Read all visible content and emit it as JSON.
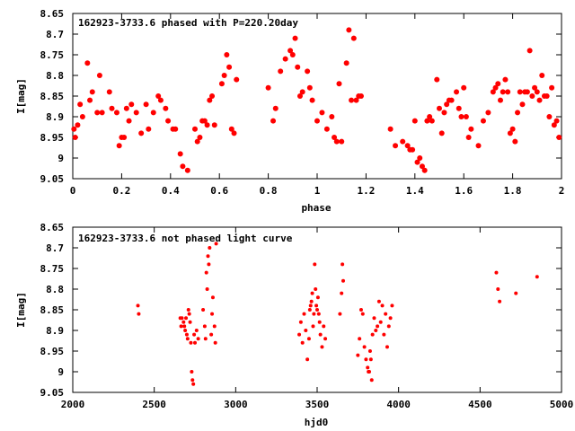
{
  "chart_data": [
    {
      "type": "scatter",
      "title": "162923-3733.6 phased with P=220.20day",
      "xlabel": "phase",
      "ylabel": "I[mag]",
      "xlim": [
        0,
        2
      ],
      "ylim": [
        8.65,
        9.05
      ],
      "y_inverted": true,
      "grid": false,
      "marker_color": "#ff0000",
      "x_ticks": [
        "0",
        "0.2",
        "0.4",
        "0.6",
        "0.8",
        "1",
        "1.2",
        "1.4",
        "1.6",
        "1.8",
        "2"
      ],
      "y_ticks": [
        "8.65",
        "8.7",
        "8.75",
        "8.8",
        "8.85",
        "8.9",
        "8.95",
        "9",
        "9.05"
      ],
      "x_tick_values": [
        0,
        0.2,
        0.4,
        0.6,
        0.8,
        1.0,
        1.2,
        1.4,
        1.6,
        1.8,
        2.0
      ],
      "y_tick_values": [
        8.65,
        8.7,
        8.75,
        8.8,
        8.85,
        8.9,
        8.95,
        9.0,
        9.05
      ],
      "points": [
        [
          0.005,
          8.93
        ],
        [
          0.01,
          8.95
        ],
        [
          0.02,
          8.92
        ],
        [
          0.03,
          8.87
        ],
        [
          0.04,
          8.9
        ],
        [
          0.06,
          8.77
        ],
        [
          0.07,
          8.86
        ],
        [
          0.08,
          8.84
        ],
        [
          0.1,
          8.89
        ],
        [
          0.11,
          8.8
        ],
        [
          0.12,
          8.89
        ],
        [
          0.15,
          8.84
        ],
        [
          0.16,
          8.88
        ],
        [
          0.18,
          8.89
        ],
        [
          0.19,
          8.97
        ],
        [
          0.2,
          8.95
        ],
        [
          0.21,
          8.95
        ],
        [
          0.22,
          8.88
        ],
        [
          0.23,
          8.91
        ],
        [
          0.24,
          8.87
        ],
        [
          0.26,
          8.89
        ],
        [
          0.28,
          8.94
        ],
        [
          0.3,
          8.87
        ],
        [
          0.31,
          8.93
        ],
        [
          0.33,
          8.89
        ],
        [
          0.35,
          8.85
        ],
        [
          0.36,
          8.86
        ],
        [
          0.38,
          8.88
        ],
        [
          0.39,
          8.91
        ],
        [
          0.41,
          8.93
        ],
        [
          0.42,
          8.93
        ],
        [
          0.44,
          8.99
        ],
        [
          0.45,
          9.02
        ],
        [
          0.47,
          9.03
        ],
        [
          0.5,
          8.93
        ],
        [
          0.51,
          8.96
        ],
        [
          0.52,
          8.95
        ],
        [
          0.53,
          8.91
        ],
        [
          0.54,
          8.91
        ],
        [
          0.55,
          8.92
        ],
        [
          0.56,
          8.86
        ],
        [
          0.57,
          8.85
        ],
        [
          0.58,
          8.92
        ],
        [
          0.61,
          8.82
        ],
        [
          0.62,
          8.8
        ],
        [
          0.63,
          8.75
        ],
        [
          0.64,
          8.78
        ],
        [
          0.65,
          8.93
        ],
        [
          0.66,
          8.94
        ],
        [
          0.67,
          8.81
        ],
        [
          0.8,
          8.83
        ],
        [
          0.82,
          8.91
        ],
        [
          0.83,
          8.88
        ],
        [
          0.85,
          8.79
        ],
        [
          0.87,
          8.76
        ],
        [
          0.89,
          8.74
        ],
        [
          0.9,
          8.75
        ],
        [
          0.91,
          8.71
        ],
        [
          0.92,
          8.78
        ],
        [
          0.93,
          8.85
        ],
        [
          0.94,
          8.84
        ],
        [
          0.96,
          8.79
        ],
        [
          0.97,
          8.83
        ],
        [
          0.98,
          8.86
        ],
        [
          1.0,
          8.91
        ],
        [
          1.02,
          8.89
        ],
        [
          1.04,
          8.93
        ],
        [
          1.06,
          8.9
        ],
        [
          1.07,
          8.95
        ],
        [
          1.08,
          8.96
        ],
        [
          1.09,
          8.82
        ],
        [
          1.1,
          8.96
        ],
        [
          1.12,
          8.77
        ],
        [
          1.13,
          8.69
        ],
        [
          1.14,
          8.86
        ],
        [
          1.15,
          8.71
        ],
        [
          1.16,
          8.86
        ],
        [
          1.17,
          8.85
        ],
        [
          1.18,
          8.85
        ],
        [
          1.3,
          8.93
        ],
        [
          1.32,
          8.97
        ],
        [
          1.35,
          8.96
        ],
        [
          1.37,
          8.97
        ],
        [
          1.38,
          8.98
        ],
        [
          1.39,
          8.98
        ],
        [
          1.4,
          8.91
        ],
        [
          1.41,
          9.01
        ],
        [
          1.42,
          9.0
        ],
        [
          1.43,
          9.02
        ],
        [
          1.44,
          9.03
        ],
        [
          1.45,
          8.91
        ],
        [
          1.46,
          8.9
        ],
        [
          1.47,
          8.91
        ],
        [
          1.49,
          8.81
        ],
        [
          1.5,
          8.88
        ],
        [
          1.51,
          8.94
        ],
        [
          1.52,
          8.89
        ],
        [
          1.53,
          8.87
        ],
        [
          1.54,
          8.86
        ],
        [
          1.55,
          8.86
        ],
        [
          1.57,
          8.84
        ],
        [
          1.58,
          8.88
        ],
        [
          1.59,
          8.9
        ],
        [
          1.6,
          8.83
        ],
        [
          1.61,
          8.9
        ],
        [
          1.62,
          8.95
        ],
        [
          1.63,
          8.93
        ],
        [
          1.66,
          8.97
        ],
        [
          1.68,
          8.91
        ],
        [
          1.7,
          8.89
        ],
        [
          1.72,
          8.84
        ],
        [
          1.73,
          8.83
        ],
        [
          1.74,
          8.82
        ],
        [
          1.75,
          8.86
        ],
        [
          1.76,
          8.84
        ],
        [
          1.77,
          8.81
        ],
        [
          1.78,
          8.84
        ],
        [
          1.79,
          8.94
        ],
        [
          1.8,
          8.93
        ],
        [
          1.81,
          8.96
        ],
        [
          1.82,
          8.89
        ],
        [
          1.83,
          8.84
        ],
        [
          1.84,
          8.87
        ],
        [
          1.85,
          8.84
        ],
        [
          1.86,
          8.84
        ],
        [
          1.87,
          8.74
        ],
        [
          1.88,
          8.85
        ],
        [
          1.89,
          8.83
        ],
        [
          1.9,
          8.84
        ],
        [
          1.91,
          8.86
        ],
        [
          1.92,
          8.8
        ],
        [
          1.93,
          8.85
        ],
        [
          1.94,
          8.85
        ],
        [
          1.95,
          8.9
        ],
        [
          1.96,
          8.83
        ],
        [
          1.97,
          8.92
        ],
        [
          1.98,
          8.91
        ],
        [
          1.99,
          8.95
        ]
      ]
    },
    {
      "type": "scatter",
      "title": "162923-3733.6 not phased light curve",
      "xlabel": "hjd0",
      "ylabel": "I[mag]",
      "xlim": [
        2000,
        5000
      ],
      "ylim": [
        8.65,
        9.05
      ],
      "y_inverted": true,
      "grid": false,
      "marker_color": "#ff0000",
      "x_ticks": [
        "2000",
        "2500",
        "3000",
        "3500",
        "4000",
        "4500",
        "5000"
      ],
      "y_ticks": [
        "8.65",
        "8.7",
        "8.75",
        "8.8",
        "8.85",
        "8.9",
        "8.95",
        "9",
        "9.05"
      ],
      "x_tick_values": [
        2000,
        2500,
        3000,
        3500,
        4000,
        4500,
        5000
      ],
      "y_tick_values": [
        8.65,
        8.7,
        8.75,
        8.8,
        8.85,
        8.9,
        8.95,
        9.0,
        9.05
      ],
      "points": [
        [
          2400,
          8.84
        ],
        [
          2405,
          8.86
        ],
        [
          2660,
          8.87
        ],
        [
          2665,
          8.89
        ],
        [
          2670,
          8.87
        ],
        [
          2680,
          8.88
        ],
        [
          2685,
          8.89
        ],
        [
          2690,
          8.9
        ],
        [
          2695,
          8.87
        ],
        [
          2700,
          8.91
        ],
        [
          2705,
          8.92
        ],
        [
          2710,
          8.85
        ],
        [
          2715,
          8.86
        ],
        [
          2720,
          8.88
        ],
        [
          2725,
          8.93
        ],
        [
          2730,
          9.0
        ],
        [
          2735,
          9.02
        ],
        [
          2740,
          9.03
        ],
        [
          2745,
          8.91
        ],
        [
          2750,
          8.93
        ],
        [
          2760,
          8.9
        ],
        [
          2770,
          8.92
        ],
        [
          2800,
          8.85
        ],
        [
          2810,
          8.89
        ],
        [
          2815,
          8.92
        ],
        [
          2820,
          8.76
        ],
        [
          2825,
          8.8
        ],
        [
          2830,
          8.72
        ],
        [
          2835,
          8.74
        ],
        [
          2840,
          8.7
        ],
        [
          2850,
          8.91
        ],
        [
          2855,
          8.86
        ],
        [
          2860,
          8.82
        ],
        [
          2870,
          8.89
        ],
        [
          2875,
          8.93
        ],
        [
          2880,
          8.69
        ],
        [
          3390,
          8.91
        ],
        [
          3400,
          8.88
        ],
        [
          3410,
          8.93
        ],
        [
          3420,
          8.86
        ],
        [
          3430,
          8.9
        ],
        [
          3440,
          8.97
        ],
        [
          3450,
          8.92
        ],
        [
          3455,
          8.85
        ],
        [
          3460,
          8.84
        ],
        [
          3465,
          8.83
        ],
        [
          3470,
          8.81
        ],
        [
          3475,
          8.89
        ],
        [
          3480,
          8.86
        ],
        [
          3485,
          8.74
        ],
        [
          3490,
          8.8
        ],
        [
          3495,
          8.84
        ],
        [
          3500,
          8.85
        ],
        [
          3505,
          8.82
        ],
        [
          3510,
          8.86
        ],
        [
          3515,
          8.88
        ],
        [
          3520,
          8.91
        ],
        [
          3530,
          8.94
        ],
        [
          3540,
          8.89
        ],
        [
          3550,
          8.92
        ],
        [
          3640,
          8.86
        ],
        [
          3650,
          8.81
        ],
        [
          3655,
          8.74
        ],
        [
          3660,
          8.78
        ],
        [
          3750,
          8.96
        ],
        [
          3760,
          8.92
        ],
        [
          3770,
          8.85
        ],
        [
          3780,
          8.86
        ],
        [
          3790,
          8.94
        ],
        [
          3800,
          8.97
        ],
        [
          3810,
          8.99
        ],
        [
          3815,
          9.0
        ],
        [
          3820,
          9.0
        ],
        [
          3825,
          8.95
        ],
        [
          3830,
          8.97
        ],
        [
          3835,
          9.02
        ],
        [
          3840,
          8.91
        ],
        [
          3850,
          8.87
        ],
        [
          3860,
          8.9
        ],
        [
          3870,
          8.89
        ],
        [
          3880,
          8.83
        ],
        [
          3890,
          8.88
        ],
        [
          3900,
          8.84
        ],
        [
          3910,
          8.91
        ],
        [
          3920,
          8.86
        ],
        [
          3930,
          8.94
        ],
        [
          3940,
          8.89
        ],
        [
          3950,
          8.87
        ],
        [
          3960,
          8.84
        ],
        [
          4600,
          8.76
        ],
        [
          4610,
          8.8
        ],
        [
          4620,
          8.83
        ],
        [
          4720,
          8.81
        ],
        [
          4850,
          8.77
        ]
      ]
    }
  ]
}
